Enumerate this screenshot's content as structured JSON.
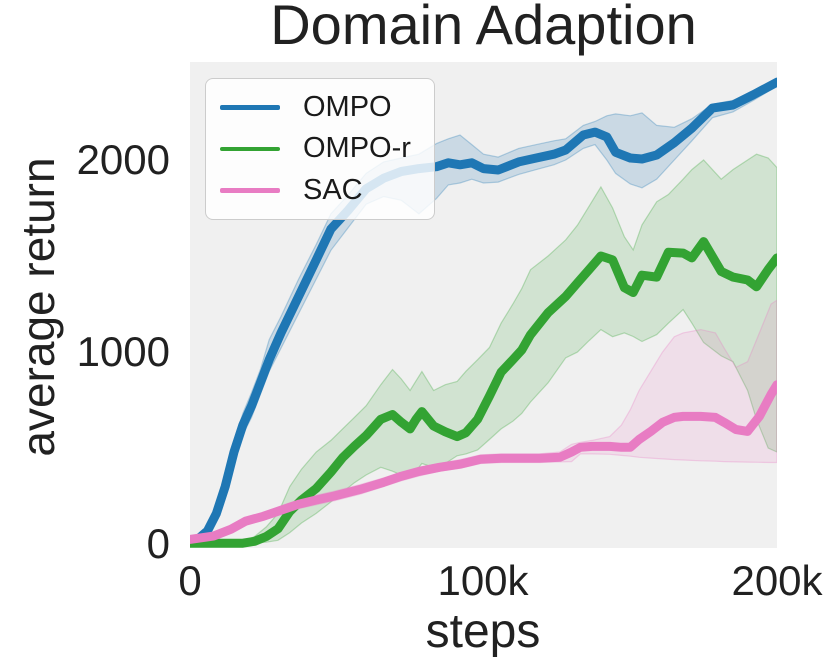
{
  "title": "Domain Adaption",
  "axes": {
    "xlabel": "steps",
    "ylabel": "average return",
    "x_ticks": [
      {
        "label": "0",
        "step_k": 0
      },
      {
        "label": "100k",
        "step_k": 100
      },
      {
        "label": "200k",
        "step_k": 200
      }
    ],
    "y_ticks": [
      {
        "label": "0",
        "value": 0
      },
      {
        "label": "1000",
        "value": 1000
      },
      {
        "label": "2000",
        "value": 2000
      }
    ]
  },
  "legend": {
    "items": [
      {
        "label": "OMPO",
        "color": "#1f77b4"
      },
      {
        "label": "OMPO-r",
        "color": "#33a333"
      },
      {
        "label": "SAC",
        "color": "#e87cc3"
      }
    ]
  },
  "plot": {
    "background_color": "#f0f0f0",
    "text_color": "#212121"
  },
  "chart_data": {
    "type": "line",
    "title": "Domain Adaption",
    "xlabel": "steps",
    "ylabel": "average return",
    "x_unit": "thousand steps",
    "xlim": [
      0,
      200
    ],
    "ylim": [
      -20,
      2510
    ],
    "grid": false,
    "legend_position": "upper left",
    "bands": "shaded min-max/confidence region around each mean line",
    "series": [
      {
        "name": "OMPO",
        "color": "#1f77b4",
        "band_opacity": 0.18,
        "x": [
          0,
          3,
          6,
          9,
          12,
          15,
          18,
          21,
          24,
          27,
          31,
          37,
          43,
          48,
          54,
          60,
          66,
          72,
          78,
          84,
          88,
          92,
          96,
          100,
          105,
          112,
          118,
          124,
          128,
          134,
          138,
          142,
          145,
          150,
          154,
          159,
          165,
          171,
          178,
          185,
          192,
          200
        ],
        "mean": [
          10,
          30,
          70,
          160,
          300,
          480,
          620,
          720,
          840,
          960,
          1100,
          1290,
          1480,
          1640,
          1740,
          1850,
          1905,
          1940,
          1955,
          1965,
          1985,
          1975,
          1985,
          1955,
          1948,
          1990,
          2010,
          2030,
          2052,
          2130,
          2145,
          2120,
          2040,
          2010,
          2005,
          2026,
          2090,
          2166,
          2270,
          2286,
          2340,
          2405
        ],
        "lo": [
          0,
          15,
          50,
          130,
          260,
          430,
          570,
          660,
          780,
          900,
          1020,
          1200,
          1380,
          1530,
          1650,
          1770,
          1810,
          1790,
          1720,
          1800,
          1870,
          1880,
          1900,
          1880,
          1885,
          1925,
          1950,
          1975,
          2000,
          2060,
          2080,
          2000,
          1930,
          1875,
          1855,
          1900,
          2000,
          2100,
          2220,
          2250,
          2310,
          2385
        ],
        "hi": [
          20,
          50,
          100,
          200,
          350,
          530,
          680,
          790,
          910,
          1065,
          1185,
          1380,
          1560,
          1720,
          1820,
          1930,
          1990,
          2010,
          2030,
          2085,
          2110,
          2130,
          2080,
          2030,
          2015,
          2060,
          2080,
          2100,
          2110,
          2180,
          2200,
          2230,
          2240,
          2230,
          2245,
          2180,
          2170,
          2215,
          2290,
          2310,
          2360,
          2420
        ]
      },
      {
        "name": "OMPO-r",
        "color": "#33a333",
        "band_opacity": 0.16,
        "x": [
          0,
          10,
          18,
          22,
          26,
          30,
          34,
          38,
          43,
          48,
          52,
          56,
          60,
          65,
          69,
          72,
          75,
          77,
          79,
          83,
          87,
          91,
          94,
          98,
          102,
          106,
          110,
          113,
          116,
          122,
          128,
          132,
          136,
          140,
          144,
          148,
          151,
          154,
          159,
          163,
          168,
          171,
          175,
          181,
          185,
          190,
          193,
          197,
          200
        ],
        "mean": [
          5,
          5,
          5,
          15,
          40,
          80,
          170,
          230,
          290,
          375,
          450,
          510,
          565,
          650,
          675,
          635,
          600,
          650,
          690,
          615,
          585,
          560,
          580,
          650,
          770,
          895,
          960,
          1010,
          1090,
          1205,
          1290,
          1360,
          1430,
          1500,
          1480,
          1335,
          1310,
          1400,
          1390,
          1520,
          1515,
          1490,
          1575,
          1420,
          1390,
          1375,
          1340,
          1430,
          1490
        ],
        "lo": [
          0,
          0,
          0,
          5,
          10,
          20,
          60,
          110,
          160,
          220,
          270,
          320,
          360,
          400,
          380,
          360,
          350,
          380,
          420,
          400,
          420,
          460,
          470,
          490,
          545,
          600,
          640,
          680,
          740,
          840,
          970,
          1000,
          1060,
          1117,
          1080,
          1100,
          1081,
          1055,
          1091,
          1150,
          1221,
          1150,
          1050,
          980,
          950,
          800,
          650,
          500,
          480
        ],
        "hi": [
          15,
          15,
          15,
          40,
          90,
          160,
          300,
          390,
          480,
          540,
          600,
          660,
          720,
          830,
          909,
          860,
          800,
          850,
          899,
          800,
          830,
          847,
          900,
          960,
          1023,
          1150,
          1250,
          1330,
          1429,
          1500,
          1584,
          1660,
          1760,
          1860,
          1750,
          1600,
          1532,
          1662,
          1782,
          1820,
          1900,
          1950,
          2000,
          1900,
          1950,
          2000,
          2030,
          2010,
          1960
        ]
      },
      {
        "name": "SAC",
        "color": "#e87cc3",
        "band_opacity": 0.15,
        "x": [
          0,
          8,
          14,
          19,
          25,
          32,
          37,
          43,
          49,
          58,
          66,
          72,
          78,
          85,
          92,
          99,
          106,
          112,
          119,
          126,
          130,
          133,
          137,
          143,
          147,
          150,
          153,
          157,
          161,
          165,
          168,
          174,
          179,
          182,
          186,
          190,
          194,
          198,
          200
        ],
        "mean": [
          25,
          42,
          78,
          120,
          145,
          182,
          208,
          230,
          250,
          285,
          322,
          353,
          379,
          400,
          416,
          442,
          447,
          447,
          447,
          452,
          480,
          504,
          509,
          509,
          504,
          504,
          545,
          587,
          634,
          660,
          665,
          665,
          660,
          634,
          597,
          587,
          665,
          780,
          830
        ],
        "lo": [
          15,
          30,
          60,
          100,
          125,
          160,
          185,
          205,
          225,
          260,
          300,
          330,
          355,
          380,
          395,
          420,
          425,
          425,
          425,
          428,
          430,
          470,
          470,
          468,
          462,
          458,
          452,
          448,
          444,
          440,
          438,
          434,
          432,
          430,
          428,
          427,
          426,
          425,
          425
        ],
        "hi": [
          35,
          60,
          95,
          140,
          165,
          205,
          230,
          255,
          275,
          310,
          345,
          375,
          400,
          420,
          440,
          465,
          470,
          470,
          470,
          480,
          520,
          530,
          540,
          560,
          620,
          700,
          800,
          900,
          1000,
          1080,
          1100,
          1117,
          1100,
          1020,
          920,
          950,
          1100,
          1250,
          1270
        ]
      }
    ]
  }
}
